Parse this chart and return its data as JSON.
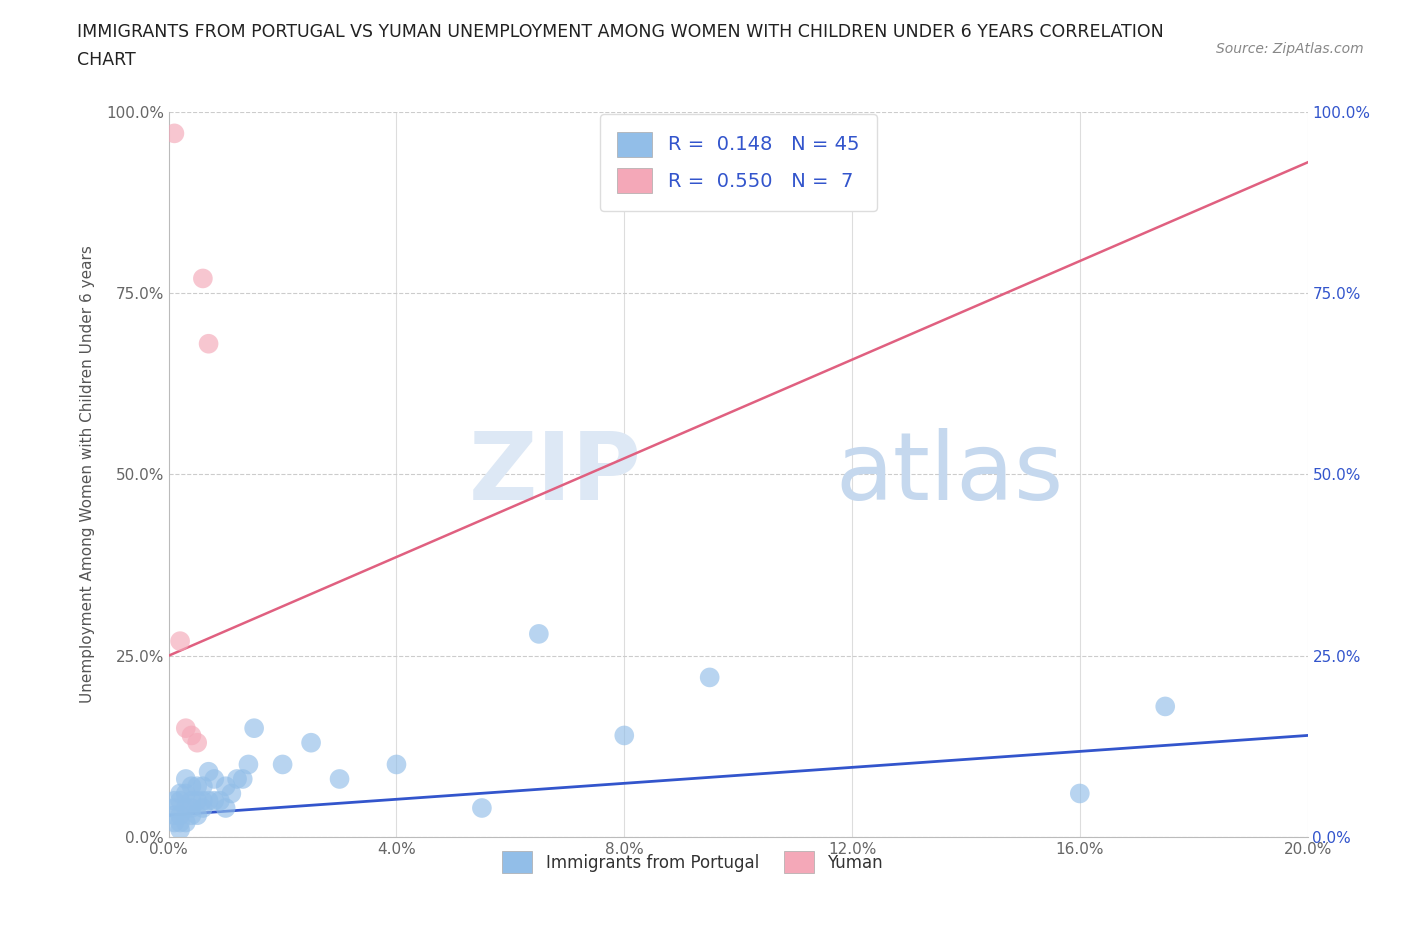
{
  "title_line1": "IMMIGRANTS FROM PORTUGAL VS YUMAN UNEMPLOYMENT AMONG WOMEN WITH CHILDREN UNDER 6 YEARS CORRELATION",
  "title_line2": "CHART",
  "source": "Source: ZipAtlas.com",
  "ylabel": "Unemployment Among Women with Children Under 6 years",
  "xlabel": "",
  "xlim": [
    0.0,
    0.2
  ],
  "ylim": [
    0.0,
    1.0
  ],
  "xticks": [
    0.0,
    0.04,
    0.08,
    0.12,
    0.16,
    0.2
  ],
  "xticklabels": [
    "0.0%",
    "4.0%",
    "8.0%",
    "12.0%",
    "16.0%",
    "20.0%"
  ],
  "yticks": [
    0.0,
    0.25,
    0.5,
    0.75,
    1.0
  ],
  "yticklabels": [
    "0.0%",
    "25.0%",
    "50.0%",
    "75.0%",
    "100.0%"
  ],
  "blue_scatter_x": [
    0.001,
    0.001,
    0.001,
    0.001,
    0.002,
    0.002,
    0.002,
    0.002,
    0.002,
    0.003,
    0.003,
    0.003,
    0.003,
    0.004,
    0.004,
    0.004,
    0.004,
    0.005,
    0.005,
    0.005,
    0.006,
    0.006,
    0.006,
    0.007,
    0.007,
    0.008,
    0.008,
    0.009,
    0.01,
    0.01,
    0.011,
    0.012,
    0.013,
    0.014,
    0.015,
    0.02,
    0.025,
    0.03,
    0.04,
    0.055,
    0.065,
    0.08,
    0.095,
    0.16,
    0.175
  ],
  "blue_scatter_y": [
    0.02,
    0.03,
    0.04,
    0.05,
    0.01,
    0.02,
    0.03,
    0.05,
    0.06,
    0.02,
    0.04,
    0.06,
    0.08,
    0.03,
    0.04,
    0.05,
    0.07,
    0.03,
    0.05,
    0.07,
    0.04,
    0.05,
    0.07,
    0.05,
    0.09,
    0.05,
    0.08,
    0.05,
    0.04,
    0.07,
    0.06,
    0.08,
    0.08,
    0.1,
    0.15,
    0.1,
    0.13,
    0.08,
    0.1,
    0.04,
    0.28,
    0.14,
    0.22,
    0.06,
    0.18
  ],
  "pink_scatter_x": [
    0.001,
    0.002,
    0.003,
    0.004,
    0.005,
    0.006,
    0.007
  ],
  "pink_scatter_y": [
    0.97,
    0.27,
    0.15,
    0.14,
    0.13,
    0.77,
    0.68
  ],
  "blue_R": 0.148,
  "blue_N": 45,
  "pink_R": 0.55,
  "pink_N": 7,
  "blue_color": "#92BEE8",
  "pink_color": "#F4A8B8",
  "blue_line_color": "#3355CC",
  "pink_line_color": "#E06080",
  "grid_color": "#CCCCCC",
  "watermark_zip": "ZIP",
  "watermark_atlas": "atlas",
  "background_color": "#FFFFFF",
  "pink_line_x0": 0.0,
  "pink_line_y0": 0.25,
  "pink_line_x1": 0.2,
  "pink_line_y1": 0.93,
  "blue_line_x0": 0.0,
  "blue_line_y0": 0.03,
  "blue_line_x1": 0.2,
  "blue_line_y1": 0.14
}
